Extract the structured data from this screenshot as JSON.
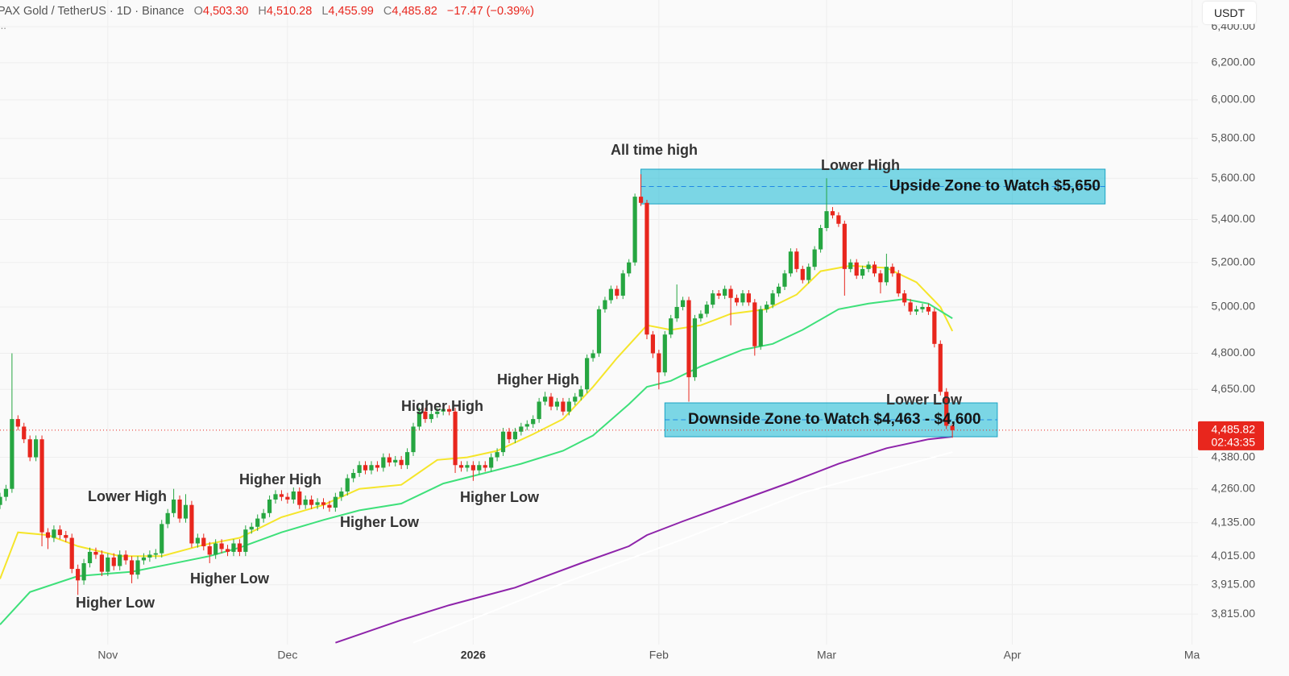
{
  "header": {
    "symbol": "PAX Gold / TetherUS · 1D · Binance",
    "ohlc": [
      {
        "key": "O",
        "value": "4,503.30"
      },
      {
        "key": "H",
        "value": "4,510.28"
      },
      {
        "key": "L",
        "value": "4,455.99"
      },
      {
        "key": "C",
        "value": "4,485.82"
      }
    ],
    "change": "−17.47 (−0.39%)",
    "more": "..."
  },
  "currency_button": "USDT",
  "chart_data": {
    "type": "candlestick",
    "log_scale": true,
    "grid": true,
    "up_color": "#26a641",
    "down_color": "#e8261d",
    "xlim": [
      0,
      200
    ],
    "ylim": [
      3714,
      6552
    ],
    "xticks": [
      {
        "value": 18,
        "label": "Nov"
      },
      {
        "value": 48,
        "label": "Dec"
      },
      {
        "value": 79,
        "label": "2026"
      },
      {
        "value": 110,
        "label": "Feb"
      },
      {
        "value": 138,
        "label": "Mar"
      },
      {
        "value": 169,
        "label": "Apr"
      },
      {
        "value": 199,
        "label": "Ma"
      }
    ],
    "yticks": [
      {
        "value": 3815,
        "label": "3,815.00"
      },
      {
        "value": 3915,
        "label": "3,915.00"
      },
      {
        "value": 4015,
        "label": "4,015.00"
      },
      {
        "value": 4135,
        "label": "4,135.00"
      },
      {
        "value": 4260,
        "label": "4,260.00"
      },
      {
        "value": 4380,
        "label": "4,380.00"
      },
      {
        "value": 4650,
        "label": "4,650.00"
      },
      {
        "value": 4800,
        "label": "4,800.00"
      },
      {
        "value": 5000,
        "label": "5,000.00"
      },
      {
        "value": 5200,
        "label": "5,200.00"
      },
      {
        "value": 5400,
        "label": "5,400.00"
      },
      {
        "value": 5600,
        "label": "5,600.00"
      },
      {
        "value": 5800,
        "label": "5,800.00"
      },
      {
        "value": 6000,
        "label": "6,000.00"
      },
      {
        "value": 6200,
        "label": "6,200.00"
      },
      {
        "value": 6400,
        "label": "6,400.00"
      }
    ],
    "x": [
      0,
      1,
      2,
      3,
      4,
      5,
      6,
      7,
      8,
      9,
      10,
      11,
      12,
      13,
      14,
      15,
      16,
      17,
      18,
      19,
      20,
      21,
      22,
      23,
      24,
      25,
      26,
      27,
      28,
      29,
      30,
      31,
      32,
      33,
      34,
      35,
      36,
      37,
      38,
      39,
      40,
      41,
      42,
      43,
      44,
      45,
      46,
      47,
      48,
      49,
      50,
      51,
      52,
      53,
      54,
      55,
      56,
      57,
      58,
      59,
      60,
      61,
      62,
      63,
      64,
      65,
      66,
      67,
      68,
      69,
      70,
      71,
      72,
      73,
      74,
      75,
      76,
      77,
      78,
      79,
      80,
      81,
      82,
      83,
      84,
      85,
      86,
      87,
      88,
      89,
      90,
      91,
      92,
      93,
      94,
      95,
      96,
      97,
      98,
      99,
      100,
      101,
      102,
      103,
      104,
      105,
      106,
      107,
      108,
      109,
      110,
      111,
      112,
      113,
      114,
      115,
      116,
      117,
      118,
      119,
      120,
      121,
      122,
      123,
      124,
      125,
      126,
      127,
      128,
      129,
      130,
      131,
      132,
      133,
      134,
      135,
      136,
      137,
      138,
      139,
      140,
      141,
      142,
      143,
      144,
      145,
      146,
      147,
      148,
      149,
      150,
      151,
      152,
      153,
      154,
      155,
      156,
      157,
      158,
      159
    ],
    "candles": [
      [
        4200,
        4245,
        4185,
        4230
      ],
      [
        4230,
        4275,
        4215,
        4260
      ],
      [
        4260,
        4800,
        4245,
        4530
      ],
      [
        4530,
        4545,
        4485,
        4500
      ],
      [
        4500,
        4515,
        4435,
        4450
      ],
      [
        4450,
        4465,
        4365,
        4380
      ],
      [
        4380,
        4465,
        4365,
        4450
      ],
      [
        4450,
        4465,
        4050,
        4100
      ],
      [
        4100,
        4115,
        4040,
        4080
      ],
      [
        4080,
        4125,
        4065,
        4110
      ],
      [
        4110,
        4125,
        4075,
        4090
      ],
      [
        4090,
        4105,
        4065,
        4080
      ],
      [
        4080,
        4095,
        3955,
        3970
      ],
      [
        3970,
        3985,
        3880,
        3930
      ],
      [
        3930,
        4005,
        3915,
        3990
      ],
      [
        3990,
        4045,
        3975,
        4030
      ],
      [
        4030,
        4045,
        4005,
        4020
      ],
      [
        4020,
        4035,
        3945,
        3960
      ],
      [
        3960,
        4025,
        3945,
        4010
      ],
      [
        4010,
        4025,
        3965,
        3980
      ],
      [
        3980,
        4035,
        3965,
        4020
      ],
      [
        4020,
        4035,
        3985,
        4000
      ],
      [
        4000,
        4015,
        3920,
        3950
      ],
      [
        3950,
        4015,
        3935,
        4000
      ],
      [
        4000,
        4025,
        3985,
        4010
      ],
      [
        4010,
        4035,
        3995,
        4020
      ],
      [
        4020,
        4040,
        4005,
        4025
      ],
      [
        4025,
        4145,
        4010,
        4130
      ],
      [
        4130,
        4185,
        4115,
        4170
      ],
      [
        4170,
        4260,
        4155,
        4220
      ],
      [
        4220,
        4235,
        4135,
        4150
      ],
      [
        4150,
        4240,
        4135,
        4200
      ],
      [
        4200,
        4215,
        4045,
        4060
      ],
      [
        4060,
        4095,
        4045,
        4080
      ],
      [
        4080,
        4095,
        4035,
        4050
      ],
      [
        4050,
        4065,
        3990,
        4020
      ],
      [
        4020,
        4075,
        4005,
        4060
      ],
      [
        4060,
        4075,
        4025,
        4040
      ],
      [
        4040,
        4055,
        4015,
        4030
      ],
      [
        4030,
        4075,
        4015,
        4060
      ],
      [
        4060,
        4075,
        4015,
        4030
      ],
      [
        4030,
        4125,
        4015,
        4110
      ],
      [
        4110,
        4135,
        4095,
        4120
      ],
      [
        4120,
        4165,
        4105,
        4150
      ],
      [
        4150,
        4185,
        4135,
        4170
      ],
      [
        4170,
        4235,
        4155,
        4220
      ],
      [
        4220,
        4255,
        4205,
        4240
      ],
      [
        4240,
        4255,
        4215,
        4230
      ],
      [
        4230,
        4245,
        4205,
        4220
      ],
      [
        4220,
        4265,
        4205,
        4250
      ],
      [
        4250,
        4265,
        4185,
        4200
      ],
      [
        4200,
        4235,
        4185,
        4220
      ],
      [
        4220,
        4235,
        4185,
        4200
      ],
      [
        4200,
        4225,
        4185,
        4210
      ],
      [
        4210,
        4225,
        4185,
        4200
      ],
      [
        4200,
        4215,
        4175,
        4190
      ],
      [
        4190,
        4245,
        4175,
        4230
      ],
      [
        4230,
        4265,
        4215,
        4250
      ],
      [
        4250,
        4315,
        4235,
        4300
      ],
      [
        4300,
        4335,
        4285,
        4320
      ],
      [
        4320,
        4365,
        4305,
        4350
      ],
      [
        4350,
        4365,
        4315,
        4330
      ],
      [
        4330,
        4365,
        4315,
        4350
      ],
      [
        4350,
        4365,
        4325,
        4340
      ],
      [
        4340,
        4395,
        4325,
        4380
      ],
      [
        4380,
        4395,
        4345,
        4360
      ],
      [
        4360,
        4385,
        4345,
        4370
      ],
      [
        4370,
        4385,
        4335,
        4350
      ],
      [
        4350,
        4415,
        4335,
        4400
      ],
      [
        4400,
        4515,
        4385,
        4500
      ],
      [
        4500,
        4575,
        4485,
        4560
      ],
      [
        4560,
        4575,
        4515,
        4530
      ],
      [
        4530,
        4565,
        4515,
        4550
      ],
      [
        4550,
        4575,
        4535,
        4560
      ],
      [
        4560,
        4585,
        4545,
        4570
      ],
      [
        4570,
        4585,
        4545,
        4560
      ],
      [
        4560,
        4575,
        4320,
        4350
      ],
      [
        4350,
        4365,
        4325,
        4340
      ],
      [
        4340,
        4365,
        4325,
        4350
      ],
      [
        4350,
        4365,
        4290,
        4330
      ],
      [
        4330,
        4365,
        4315,
        4350
      ],
      [
        4350,
        4365,
        4325,
        4340
      ],
      [
        4340,
        4395,
        4325,
        4380
      ],
      [
        4380,
        4415,
        4365,
        4400
      ],
      [
        4400,
        4495,
        4385,
        4480
      ],
      [
        4480,
        4495,
        4435,
        4450
      ],
      [
        4450,
        4495,
        4435,
        4480
      ],
      [
        4480,
        4515,
        4465,
        4500
      ],
      [
        4500,
        4525,
        4485,
        4510
      ],
      [
        4510,
        4545,
        4495,
        4530
      ],
      [
        4530,
        4615,
        4515,
        4600
      ],
      [
        4600,
        4640,
        4585,
        4620
      ],
      [
        4620,
        4635,
        4565,
        4580
      ],
      [
        4580,
        4615,
        4565,
        4600
      ],
      [
        4600,
        4615,
        4545,
        4560
      ],
      [
        4560,
        4615,
        4545,
        4600
      ],
      [
        4600,
        4635,
        4585,
        4620
      ],
      [
        4620,
        4665,
        4605,
        4650
      ],
      [
        4650,
        4795,
        4635,
        4780
      ],
      [
        4780,
        4815,
        4765,
        4800
      ],
      [
        4800,
        5005,
        4785,
        4990
      ],
      [
        4990,
        5045,
        4975,
        5030
      ],
      [
        5030,
        5095,
        5015,
        5080
      ],
      [
        5080,
        5095,
        5035,
        5050
      ],
      [
        5050,
        5165,
        5035,
        5150
      ],
      [
        5150,
        5215,
        5135,
        5200
      ],
      [
        5200,
        5525,
        5185,
        5510
      ],
      [
        5510,
        5620,
        5465,
        5480
      ],
      [
        5480,
        5495,
        4860,
        4880
      ],
      [
        4880,
        4895,
        4780,
        4800
      ],
      [
        4800,
        4815,
        4650,
        4720
      ],
      [
        4720,
        4895,
        4705,
        4880
      ],
      [
        4880,
        4965,
        4865,
        4950
      ],
      [
        4950,
        5100,
        4935,
        5000
      ],
      [
        5000,
        5045,
        4985,
        5030
      ],
      [
        5030,
        5045,
        4600,
        4700
      ],
      [
        4700,
        4965,
        4685,
        4950
      ],
      [
        4950,
        4985,
        4935,
        4970
      ],
      [
        4970,
        5025,
        4955,
        5010
      ],
      [
        5010,
        5075,
        4995,
        5060
      ],
      [
        5060,
        5075,
        5035,
        5050
      ],
      [
        5050,
        5095,
        5035,
        5080
      ],
      [
        5080,
        5095,
        4920,
        5040
      ],
      [
        5040,
        5055,
        5005,
        5020
      ],
      [
        5020,
        5075,
        5005,
        5060
      ],
      [
        5060,
        5075,
        5005,
        5020
      ],
      [
        5020,
        5035,
        4790,
        4830
      ],
      [
        4830,
        5005,
        4815,
        4990
      ],
      [
        4990,
        5025,
        4975,
        5010
      ],
      [
        5010,
        5075,
        4995,
        5060
      ],
      [
        5060,
        5105,
        5045,
        5090
      ],
      [
        5090,
        5165,
        5075,
        5150
      ],
      [
        5150,
        5265,
        5135,
        5250
      ],
      [
        5250,
        5265,
        5155,
        5170
      ],
      [
        5170,
        5185,
        5105,
        5120
      ],
      [
        5120,
        5195,
        5105,
        5180
      ],
      [
        5180,
        5275,
        5165,
        5260
      ],
      [
        5260,
        5375,
        5245,
        5360
      ],
      [
        5360,
        5600,
        5345,
        5440
      ],
      [
        5440,
        5460,
        5405,
        5420
      ],
      [
        5420,
        5435,
        5365,
        5380
      ],
      [
        5380,
        5395,
        5050,
        5170
      ],
      [
        5170,
        5215,
        5155,
        5200
      ],
      [
        5200,
        5215,
        5125,
        5140
      ],
      [
        5140,
        5185,
        5125,
        5170
      ],
      [
        5170,
        5205,
        5155,
        5190
      ],
      [
        5190,
        5205,
        5135,
        5150
      ],
      [
        5150,
        5165,
        5060,
        5110
      ],
      [
        5110,
        5240,
        5095,
        5180
      ],
      [
        5180,
        5195,
        5135,
        5150
      ],
      [
        5150,
        5165,
        5045,
        5060
      ],
      [
        5060,
        5075,
        5005,
        5020
      ],
      [
        5020,
        5035,
        4965,
        4980
      ],
      [
        4980,
        5005,
        4965,
        4990
      ],
      [
        4990,
        5015,
        4975,
        5000
      ],
      [
        5000,
        5015,
        4965,
        4980
      ],
      [
        4980,
        4995,
        4825,
        4840
      ],
      [
        4840,
        4855,
        4625,
        4640
      ],
      [
        4640,
        4655,
        4490,
        4503.3
      ],
      [
        4503.3,
        4510.28,
        4455.99,
        4485.82
      ]
    ],
    "series": [
      {
        "color": "#f5e52a",
        "x": [
          0,
          3,
          8,
          13,
          20,
          27,
          34,
          40,
          47,
          54,
          60,
          67,
          73,
          78,
          83,
          89,
          94,
          99,
          103,
          108,
          112,
          117,
          122,
          128,
          133,
          137,
          142,
          148,
          153,
          157,
          159
        ],
        "values": [
          3935,
          4100,
          4090,
          4050,
          4015,
          4015,
          4055,
          4080,
          4155,
          4200,
          4260,
          4275,
          4370,
          4380,
          4405,
          4470,
          4530,
          4660,
          4780,
          4920,
          4900,
          4920,
          4970,
          4990,
          5055,
          5160,
          5185,
          5175,
          5110,
          5000,
          4895
        ]
      },
      {
        "color": "#3ee07a",
        "x": [
          0,
          5,
          13,
          22,
          28,
          35,
          40,
          47,
          54,
          60,
          67,
          74,
          81,
          87,
          94,
          99,
          105,
          108,
          112,
          117,
          124,
          129,
          134,
          140,
          145,
          151,
          155,
          159
        ],
        "values": [
          3780,
          3890,
          3945,
          3960,
          3985,
          4015,
          4045,
          4100,
          4145,
          4180,
          4205,
          4280,
          4320,
          4355,
          4405,
          4465,
          4590,
          4660,
          4685,
          4745,
          4815,
          4840,
          4900,
          4990,
          5015,
          5035,
          5015,
          4950
        ]
      },
      {
        "color": "#8e24aa",
        "x": [
          56,
          67,
          75,
          86,
          97,
          105,
          108,
          114,
          124,
          132,
          140,
          148,
          155,
          159
        ],
        "values": [
          3720,
          3795,
          3845,
          3905,
          3990,
          4050,
          4090,
          4140,
          4220,
          4285,
          4355,
          4415,
          4450,
          4460
        ]
      },
      {
        "color": "#ffffff",
        "x": [
          69,
          94,
          114,
          134,
          159
        ],
        "values": [
          3720,
          3920,
          4075,
          4245,
          4400
        ]
      }
    ],
    "last_price": {
      "value": 4485.82,
      "label": "4,485.82"
    },
    "countdown": "02:43:35",
    "zones": [
      {
        "label": "Upside Zone to Watch $5,650",
        "low": 5475,
        "high": 5645,
        "start": 107,
        "end": 184.5
      },
      {
        "label": "Downside Zone to Watch $4,463 - $4,600",
        "low": 4460,
        "high": 4595,
        "start": 111,
        "end": 166.5
      }
    ],
    "annotations": [
      "All time high",
      "Lower High",
      "Lower High",
      "Higher High",
      "Higher High",
      "Higher High",
      "Higher Low",
      "Higher Low",
      "Higher Low",
      "Higher Low",
      "Lower Low"
    ]
  }
}
